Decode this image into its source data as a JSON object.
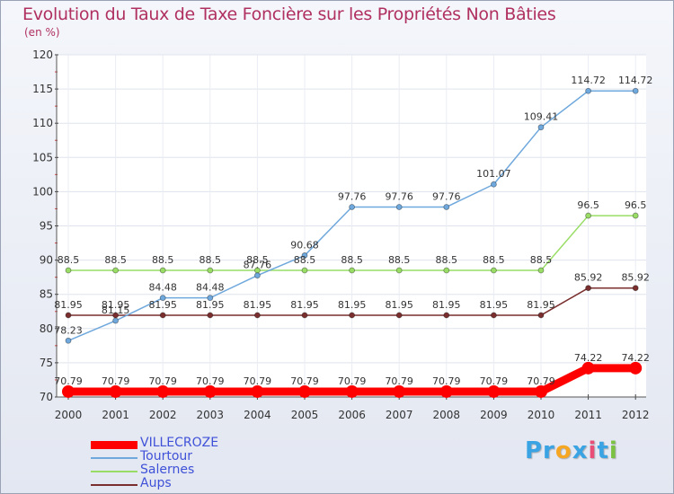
{
  "chart_data": {
    "type": "line",
    "title": "Evolution du Taux de Taxe Foncière sur les Propriétés Non Bâties",
    "ylabel": "(en %)",
    "xlabel": "",
    "ylim": [
      70,
      120
    ],
    "yticks": [
      70,
      75,
      80,
      85,
      90,
      95,
      100,
      105,
      110,
      115,
      120
    ],
    "categories": [
      "2000",
      "2001",
      "2002",
      "2003",
      "2004",
      "2005",
      "2006",
      "2007",
      "2008",
      "2009",
      "2010",
      "2011",
      "2012"
    ],
    "series": [
      {
        "name": "VILLECROZE",
        "color": "#ff0000",
        "values": [
          70.79,
          70.79,
          70.79,
          70.79,
          70.79,
          70.79,
          70.79,
          70.79,
          70.79,
          70.79,
          70.79,
          74.22,
          74.22
        ],
        "labels": [
          "70.79",
          "70.79",
          "70.79",
          "70.79",
          "70.79",
          "70.79",
          "70.79",
          "70.79",
          "70.79",
          "70.79",
          "70.79",
          "74.22",
          "74.22"
        ]
      },
      {
        "name": "Tourtour",
        "color": "#6fa8dc",
        "values": [
          78.23,
          81.15,
          84.48,
          84.48,
          87.76,
          90.68,
          97.76,
          97.76,
          97.76,
          101.07,
          109.41,
          114.72,
          114.72
        ],
        "labels": [
          "78.23",
          "81.15",
          "84.48",
          "84.48",
          "87.76",
          "90.68",
          "97.76",
          "97.76",
          "97.76",
          "101.07",
          "109.41",
          "114.72",
          "114.72"
        ]
      },
      {
        "name": "Salernes",
        "color": "#99dd66",
        "values": [
          88.5,
          88.5,
          88.5,
          88.5,
          88.5,
          88.5,
          88.5,
          88.5,
          88.5,
          88.5,
          88.5,
          96.5,
          96.5
        ],
        "labels": [
          "88.5",
          "88.5",
          "88.5",
          "88.5",
          "88.5",
          "88.5",
          "88.5",
          "88.5",
          "88.5",
          "88.5",
          "88.5",
          "96.5",
          "96.5"
        ]
      },
      {
        "name": "Aups",
        "color": "#7a2e2e",
        "values": [
          81.95,
          81.95,
          81.95,
          81.95,
          81.95,
          81.95,
          81.95,
          81.95,
          81.95,
          81.95,
          81.95,
          85.92,
          85.92
        ],
        "labels": [
          "81.95",
          "81.95",
          "81.95",
          "81.95",
          "81.95",
          "81.95",
          "81.95",
          "81.95",
          "81.95",
          "81.95",
          "81.95",
          "85.92",
          "85.92"
        ]
      }
    ]
  },
  "logo": {
    "parts": [
      "Pr",
      "o",
      "x",
      "i",
      "t",
      "i"
    ],
    "colors": [
      "#3aa3e3",
      "#f5a623",
      "#3aa3e3",
      "#e94e77",
      "#3aa3e3",
      "#7cc242"
    ]
  }
}
